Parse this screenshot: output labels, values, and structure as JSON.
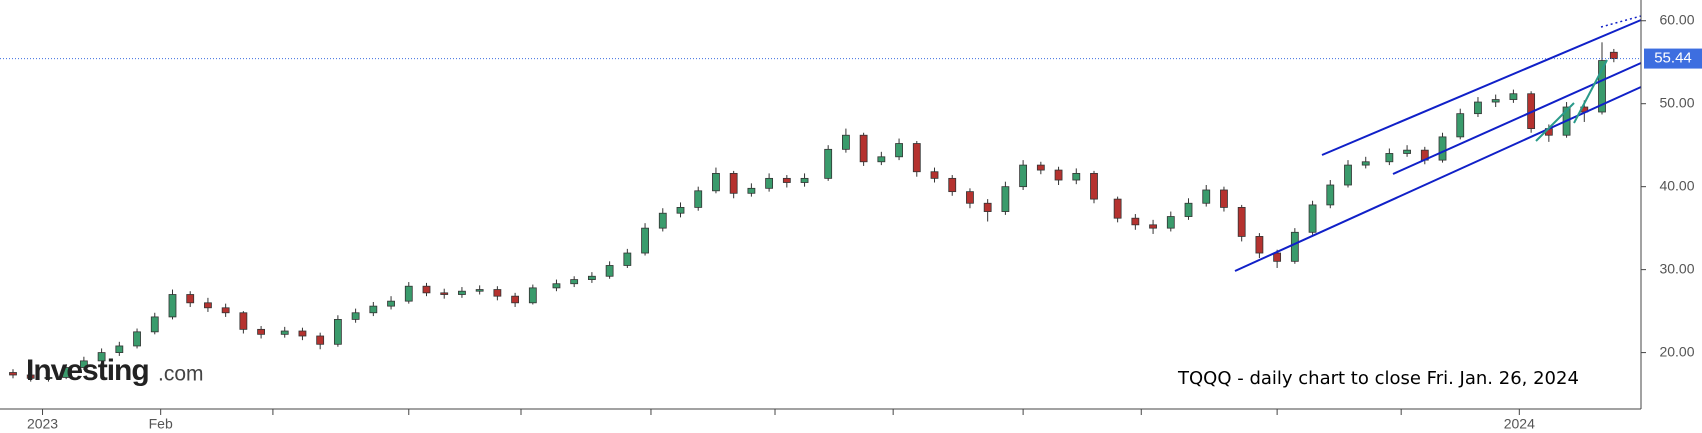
{
  "chart_data": {
    "type": "candlestick",
    "annotation": "TQQQ - daily chart to close Fri. Jan. 26, 2024",
    "watermark": {
      "brand": "Investing",
      "suffix": ".com"
    },
    "up_color": "#3a9b6c",
    "down_color": "#b5322f",
    "x": [
      -5,
      -2,
      1,
      4,
      7,
      10,
      13,
      16,
      19,
      22,
      25,
      28,
      31,
      34,
      37,
      41,
      44,
      47,
      50,
      53,
      56,
      59,
      62,
      65,
      68,
      71,
      74,
      77,
      80,
      83,
      87,
      90,
      93,
      96,
      99,
      102,
      105,
      108,
      111,
      114,
      117,
      120,
      123,
      126,
      129,
      133,
      136,
      139,
      142,
      145,
      148,
      151,
      154,
      157,
      160,
      163,
      166,
      169,
      172,
      175,
      178,
      182,
      185,
      188,
      191,
      194,
      197,
      200,
      203,
      206,
      209,
      212,
      215,
      218,
      221,
      224,
      228,
      231,
      234,
      237,
      240,
      243,
      246,
      249,
      252,
      255,
      258,
      261,
      264,
      266
    ],
    "open": [
      17.6,
      17.3,
      16.9,
      17.0,
      18.2,
      19.0,
      20.0,
      20.8,
      22.5,
      24.3,
      27.0,
      26.0,
      25.4,
      24.8,
      22.8,
      22.2,
      22.6,
      22.0,
      21.0,
      24.0,
      24.8,
      25.6,
      26.2,
      28.0,
      27.2,
      27.0,
      27.4,
      27.6,
      26.8,
      26.0,
      27.8,
      28.3,
      28.8,
      29.2,
      30.5,
      32.0,
      35.0,
      36.8,
      37.5,
      39.5,
      41.6,
      39.2,
      39.8,
      41.0,
      40.5,
      41.0,
      44.5,
      46.2,
      43.0,
      43.6,
      45.2,
      41.8,
      41.0,
      39.4,
      38.0,
      37.0,
      40.0,
      42.6,
      42.0,
      40.8,
      41.6,
      38.5,
      36.2,
      35.4,
      35.0,
      36.4,
      38.0,
      39.6,
      37.5,
      34.0,
      32.0,
      31.0,
      34.5,
      37.8,
      40.2,
      42.6,
      43.0,
      44.0,
      44.4,
      43.2,
      46.0,
      48.8,
      50.2,
      50.5,
      51.2,
      47.0,
      46.2,
      49.6,
      49.0,
      56.2
    ],
    "high": [
      18.0,
      17.7,
      17.5,
      18.6,
      19.5,
      20.5,
      21.3,
      22.9,
      24.8,
      27.6,
      27.4,
      26.6,
      25.9,
      25.0,
      23.2,
      23.1,
      23.0,
      22.4,
      24.5,
      25.3,
      26.1,
      26.8,
      28.5,
      28.4,
      27.7,
      27.9,
      28.1,
      28.0,
      27.2,
      28.2,
      28.8,
      29.2,
      29.7,
      31.0,
      32.5,
      35.6,
      37.4,
      38.1,
      40.0,
      42.3,
      41.9,
      40.4,
      41.6,
      41.4,
      41.6,
      45.0,
      47.0,
      46.5,
      44.2,
      45.8,
      45.5,
      42.3,
      41.4,
      39.8,
      38.5,
      40.6,
      43.2,
      43.0,
      42.4,
      42.2,
      41.9,
      38.8,
      36.7,
      36.0,
      37.0,
      38.6,
      40.2,
      40.0,
      37.8,
      34.4,
      32.4,
      35.0,
      38.3,
      40.8,
      43.2,
      43.6,
      44.6,
      45.0,
      44.8,
      46.5,
      49.4,
      50.8,
      51.1,
      51.7,
      51.5,
      47.5,
      50.2,
      50.4,
      57.4,
      56.6
    ],
    "low": [
      16.9,
      16.5,
      16.5,
      16.8,
      17.9,
      18.7,
      19.6,
      20.5,
      22.2,
      24.0,
      25.5,
      24.9,
      24.3,
      22.3,
      21.7,
      21.8,
      21.5,
      20.4,
      20.7,
      23.6,
      24.4,
      25.2,
      25.9,
      26.8,
      26.5,
      26.6,
      27.0,
      26.3,
      25.5,
      25.8,
      27.4,
      27.9,
      28.4,
      28.9,
      30.2,
      31.7,
      34.6,
      36.3,
      37.1,
      39.2,
      38.6,
      38.8,
      39.4,
      39.9,
      40.0,
      40.7,
      44.1,
      42.5,
      42.6,
      43.2,
      41.2,
      40.5,
      38.9,
      37.4,
      35.8,
      36.6,
      39.6,
      41.5,
      40.2,
      40.3,
      38.0,
      35.7,
      34.8,
      34.3,
      34.6,
      36.0,
      37.6,
      37.0,
      33.4,
      31.4,
      30.2,
      30.7,
      34.2,
      37.4,
      39.9,
      42.2,
      42.6,
      43.6,
      42.7,
      42.9,
      45.7,
      48.4,
      49.6,
      50.1,
      46.5,
      45.4,
      45.9,
      47.8,
      48.7,
      55.0
    ],
    "close": [
      17.3,
      16.9,
      17.0,
      18.2,
      19.0,
      20.0,
      20.8,
      22.5,
      24.3,
      27.0,
      26.0,
      25.4,
      24.8,
      22.8,
      22.2,
      22.6,
      22.0,
      21.0,
      24.0,
      24.8,
      25.6,
      26.2,
      28.0,
      27.2,
      27.0,
      27.4,
      27.6,
      26.8,
      26.0,
      27.8,
      28.3,
      28.8,
      29.2,
      30.5,
      32.0,
      35.0,
      36.8,
      37.5,
      39.5,
      41.6,
      39.2,
      39.8,
      41.0,
      40.5,
      41.0,
      44.5,
      46.2,
      43.0,
      43.6,
      45.2,
      41.8,
      41.0,
      39.4,
      38.0,
      37.0,
      40.0,
      42.6,
      42.0,
      40.8,
      41.6,
      38.5,
      36.2,
      35.4,
      35.0,
      36.4,
      38.0,
      39.6,
      37.5,
      34.0,
      32.0,
      31.0,
      34.5,
      37.8,
      40.2,
      42.6,
      43.0,
      44.0,
      44.4,
      43.2,
      46.0,
      48.8,
      50.2,
      50.5,
      51.2,
      47.0,
      46.2,
      49.6,
      49.0,
      55.2,
      55.44
    ],
    "xlim": [
      -7.2,
      270.6
    ],
    "xticks": [
      {
        "value": 0,
        "label": "2023"
      },
      {
        "value": 20,
        "label": "Feb"
      },
      {
        "value": 250,
        "label": "2024"
      }
    ],
    "minor_xticks": [
      39,
      62,
      81,
      103,
      124,
      144,
      166,
      186,
      209,
      230
    ],
    "ylim": [
      13.2,
      62.5
    ],
    "yticks": [
      {
        "value": 20,
        "label": "20.00"
      },
      {
        "value": 30,
        "label": "30.00"
      },
      {
        "value": 40,
        "label": "40.00"
      },
      {
        "value": 50,
        "label": "50.00"
      },
      {
        "value": 60,
        "label": "60.00"
      }
    ]
  }
}
